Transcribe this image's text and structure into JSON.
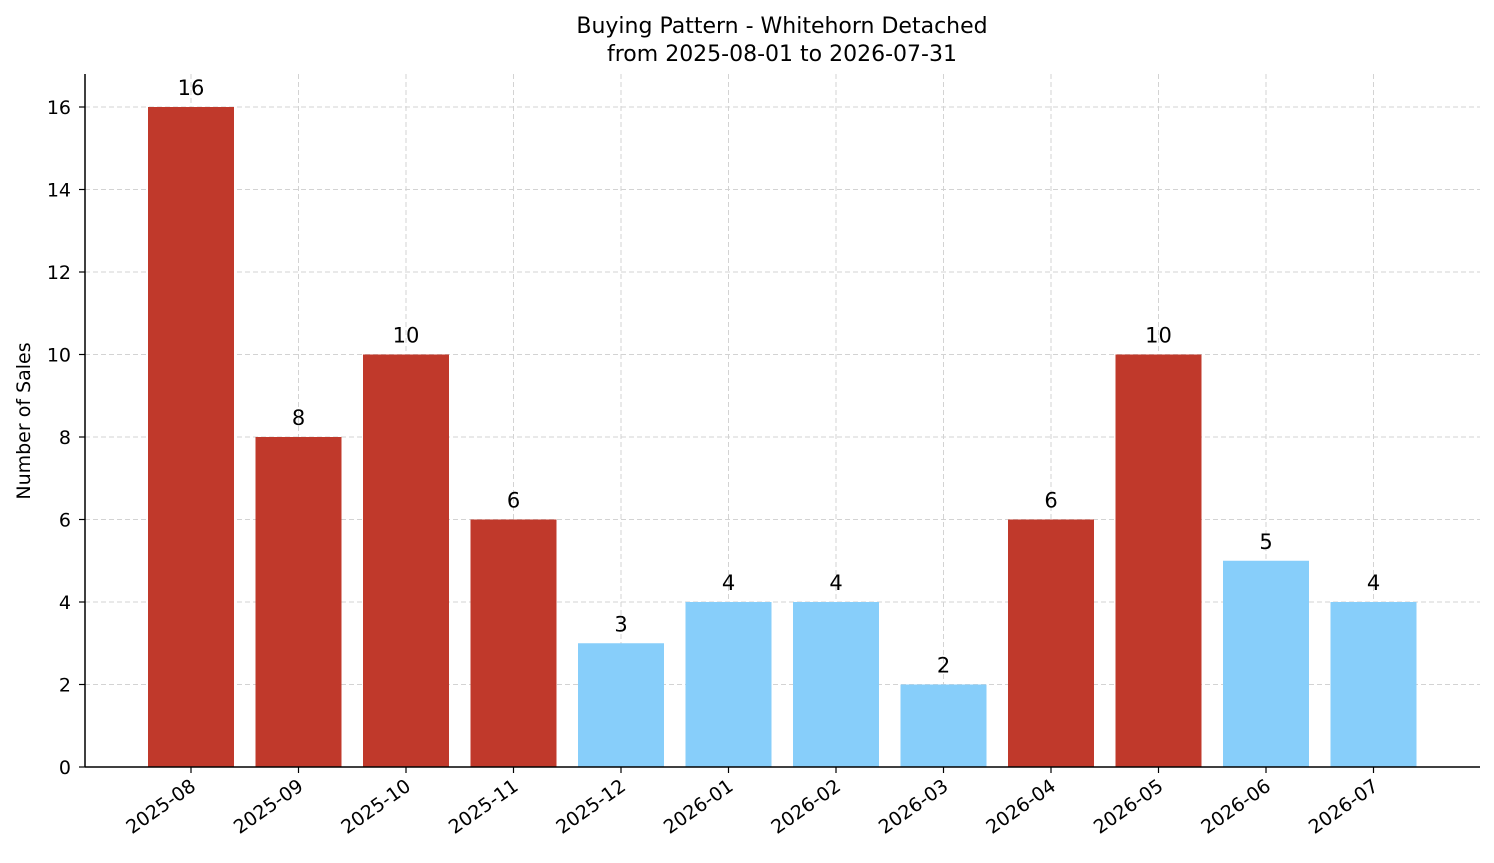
{
  "chart_data": {
    "type": "bar",
    "title": "Buying Pattern - Whitehorn Detached",
    "subtitle": "from 2025-08-01 to 2026-07-31",
    "xlabel": "",
    "ylabel": "Number of Sales",
    "categories": [
      "2025-08",
      "2025-09",
      "2025-10",
      "2025-11",
      "2025-12",
      "2026-01",
      "2026-02",
      "2026-03",
      "2026-04",
      "2026-05",
      "2026-06",
      "2026-07"
    ],
    "values": [
      16,
      8,
      10,
      6,
      3,
      4,
      4,
      2,
      6,
      10,
      5,
      4
    ],
    "bar_colors": [
      "#c0392b",
      "#c0392b",
      "#c0392b",
      "#c0392b",
      "#87cefa",
      "#87cefa",
      "#87cefa",
      "#87cefa",
      "#c0392b",
      "#c0392b",
      "#87cefa",
      "#87cefa"
    ],
    "ylim": [
      0,
      16.8
    ],
    "yticks": [
      0,
      2,
      4,
      6,
      8,
      10,
      12,
      14,
      16
    ],
    "grid": true,
    "legend": "none"
  }
}
